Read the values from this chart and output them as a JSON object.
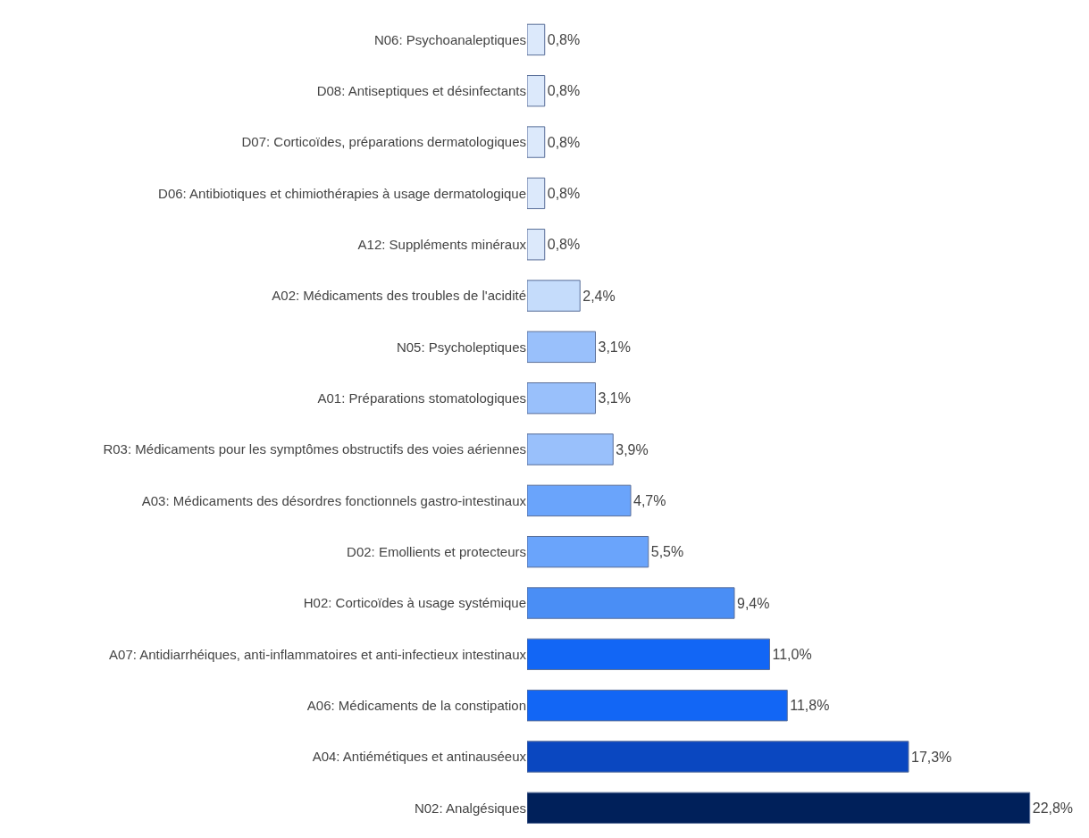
{
  "chart_data": {
    "type": "bar",
    "orientation": "horizontal",
    "categories": [
      "N06: Psychoanaleptiques",
      "D08: Antiseptiques et désinfectants",
      "D07: Corticoïdes, préparations dermatologiques",
      "D06: Antibiotiques et chimiothérapies à usage dermatologique",
      "A12: Suppléments minéraux",
      "A02: Médicaments des troubles de l'acidité",
      "N05: Psycholeptiques",
      "A01: Préparations stomatologiques",
      "R03: Médicaments pour les symptômes obstructifs des voies aériennes",
      "A03: Médicaments des désordres fonctionnels gastro-intestinaux",
      "D02: Emollients et protecteurs",
      "H02: Corticoïdes à usage systémique",
      "A07: Antidiarrhéiques, anti-inflammatoires et anti-infectieux intestinaux",
      "A06: Médicaments de la constipation",
      "A04: Antiémétiques et antinauséeux",
      "N02: Analgésiques"
    ],
    "values": [
      0.8,
      0.8,
      0.8,
      0.8,
      0.8,
      2.4,
      3.1,
      3.1,
      3.9,
      4.7,
      5.5,
      9.4,
      11.0,
      11.8,
      17.3,
      22.8
    ],
    "value_labels": [
      "0,8%",
      "0,8%",
      "0,8%",
      "0,8%",
      "0,8%",
      "2,4%",
      "3,1%",
      "3,1%",
      "3,9%",
      "4,7%",
      "5,5%",
      "9,4%",
      "11,0%",
      "11,8%",
      "17,3%",
      "22,8%"
    ],
    "colors": [
      "#dce9fb",
      "#dce9fb",
      "#dce9fb",
      "#dce9fb",
      "#dce9fb",
      "#c5dcfb",
      "#99c0fb",
      "#99c0fb",
      "#99c0fb",
      "#6aa4fb",
      "#6aa4fb",
      "#4a8ef5",
      "#1266f5",
      "#1266f5",
      "#0a47c0",
      "#00205a"
    ],
    "grid": false,
    "legend": false
  }
}
